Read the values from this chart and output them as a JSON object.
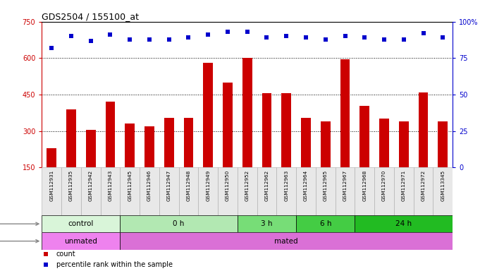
{
  "title": "GDS2504 / 155100_at",
  "samples": [
    "GSM112931",
    "GSM112935",
    "GSM112942",
    "GSM112943",
    "GSM112945",
    "GSM112946",
    "GSM112947",
    "GSM112948",
    "GSM112949",
    "GSM112950",
    "GSM112952",
    "GSM112962",
    "GSM112963",
    "GSM112964",
    "GSM112965",
    "GSM112967",
    "GSM112968",
    "GSM112970",
    "GSM112971",
    "GSM112972",
    "GSM113345"
  ],
  "counts": [
    230,
    390,
    305,
    420,
    330,
    320,
    355,
    355,
    580,
    500,
    600,
    455,
    455,
    355,
    340,
    595,
    405,
    350,
    340,
    460,
    340
  ],
  "percentile_ranks": [
    82,
    90,
    87,
    91,
    88,
    88,
    88,
    89,
    91,
    93,
    93,
    89,
    90,
    89,
    88,
    90,
    89,
    88,
    88,
    92,
    89
  ],
  "ylim_left": [
    150,
    750
  ],
  "ylim_right": [
    0,
    100
  ],
  "yticks_left": [
    150,
    300,
    450,
    600,
    750
  ],
  "yticks_right": [
    0,
    25,
    50,
    75,
    100
  ],
  "bar_color": "#cc0000",
  "dot_color": "#0000cc",
  "bg_color": "#ffffff",
  "time_groups": [
    {
      "label": "control",
      "start": 0,
      "end": 4,
      "color": "#d9f5d9"
    },
    {
      "label": "0 h",
      "start": 4,
      "end": 10,
      "color": "#b2e8b2"
    },
    {
      "label": "3 h",
      "start": 10,
      "end": 13,
      "color": "#77dd77"
    },
    {
      "label": "6 h",
      "start": 13,
      "end": 16,
      "color": "#44cc44"
    },
    {
      "label": "24 h",
      "start": 16,
      "end": 21,
      "color": "#22bb22"
    }
  ],
  "protocol_groups": [
    {
      "label": "unmated",
      "start": 0,
      "end": 4,
      "color": "#ee82ee"
    },
    {
      "label": "mated",
      "start": 4,
      "end": 21,
      "color": "#da70d6"
    }
  ],
  "legend_items": [
    {
      "label": "count",
      "color": "#cc0000"
    },
    {
      "label": "percentile rank within the sample",
      "color": "#0000cc"
    }
  ]
}
